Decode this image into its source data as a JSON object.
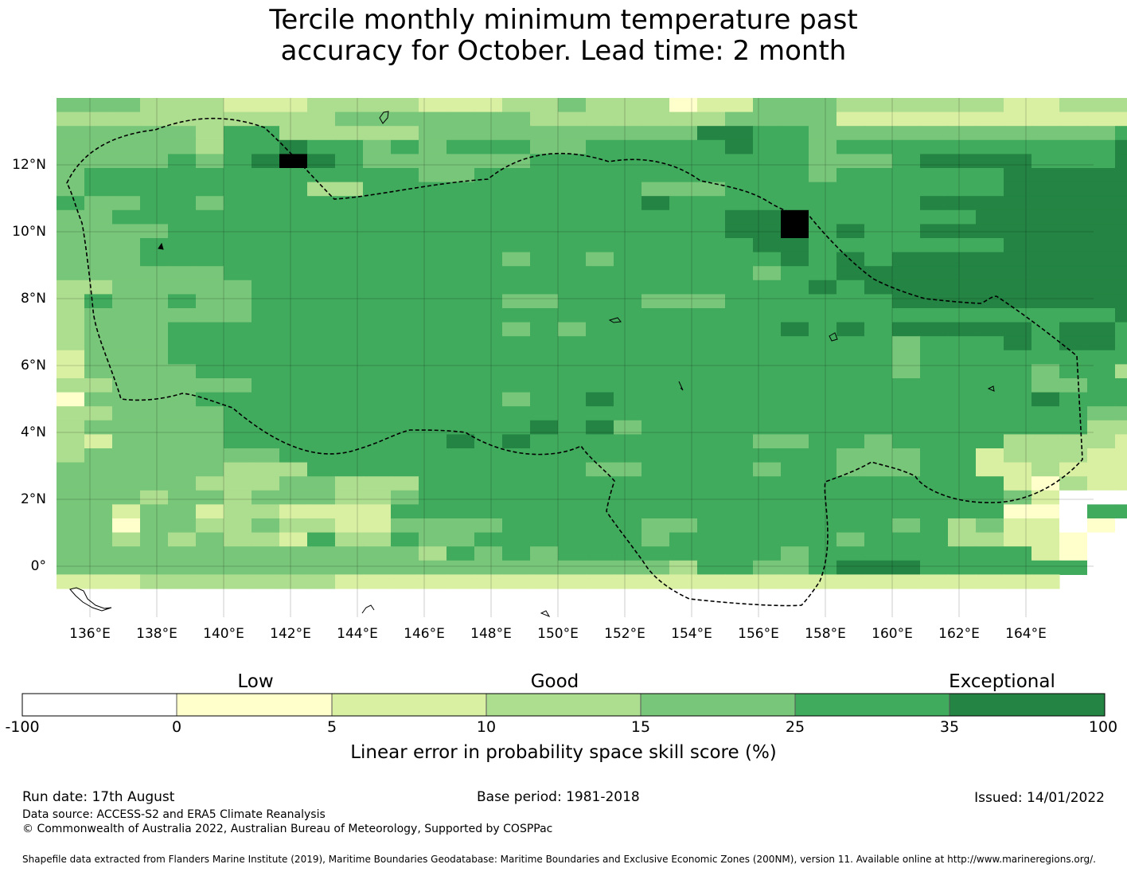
{
  "title_line1": "Tercile monthly minimum temperature past",
  "title_line2": "accuracy for October. Lead time: 2 month",
  "map": {
    "lat_ticks": [
      "12°N",
      "10°N",
      "8°N",
      "6°N",
      "4°N",
      "2°N",
      "0°"
    ],
    "lon_ticks": [
      "136°E",
      "138°E",
      "140°E",
      "142°E",
      "144°E",
      "146°E",
      "148°E",
      "150°E",
      "152°E",
      "154°E",
      "156°E",
      "158°E",
      "160°E",
      "162°E",
      "164°E"
    ],
    "grid_rows": [
      "444333222333322233433312244433333322333",
      "333333333344444443333333444422222222222",
      "444443553333344444444446655444444444445",
      "444443556554545554455555655455555555556",
      "444454567654444445555555555444566665556",
      "455555555555544555555555555455555566666",
      "455555555335555555555444555555555566666",
      "544554555555555555555655555555566666666",
      "445555555555555555555555667555555666666",
      "444455555555555555555555667565566666666",
      "444555555555555555555555566555555566666",
      "444555555555555545545555556565666666666",
      "444444555555555555555555545566666666666",
      "334444455555555555555555555656666666666",
      "354454455555555544555444555555666666666",
      "344444455555555555555555555555555555556",
      "344455555555555545455555556565666665665",
      "344455555555555555555555555555455565665",
      "244455555555555555555555555555455555555",
      "244445555555555555555555555555455554553",
      "334444455555555555555555555555555554455",
      "144445555555555545565555555555555556555",
      "334444555555555555555555555555555555544",
      "344444555555555556564555555555555555533",
      "324444555555556565555555544554555533332",
      "344444445555555555555555555544455233322",
      "444444333555555555544555545544455223222",
      "444443334433355555555555555555555521322",
      "444344344433455555555555555555555542000",
      "442442332222555555555555555555555511055",
      "441443343322444455555445555555453422010",
      "443434332533544555555455555545553322100",
      "44444444444443545455555555455555555210",
      "44444444444444444444443554456665555550",
      "222333333322222222222222222222222222"
    ],
    "colors": [
      "#ffffff",
      "#ffffcc",
      "#d9f0a3",
      "#addd8e",
      "#78c679",
      "#41ab5d",
      "#238443"
    ]
  },
  "colorbar": {
    "categories": [
      "Low",
      "Good",
      "Exceptional"
    ],
    "ticks": [
      "-100",
      "0",
      "5",
      "10",
      "15",
      "25",
      "35",
      "100"
    ],
    "label": "Linear error in probability space skill score (%)"
  },
  "footer": {
    "run_date": "Run date: 17th August",
    "base_period": "Base period: 1981-2018",
    "issued": "Issued: 14/01/2022",
    "data_source": "Data source: ACCESS-S2 and ERA5 Climate Reanalysis",
    "copyright": "© Commonwealth of Australia 2022, Australian Bureau of Meteorology, Supported by COSPPac",
    "shapefile": "Shapefile data extracted from Flanders Marine Institute (2019), Maritime Boundaries Geodatabase: Maritime Boundaries and Exclusive Economic Zones (200NM), version 11. Available online at http://www.marineregions.org/."
  }
}
